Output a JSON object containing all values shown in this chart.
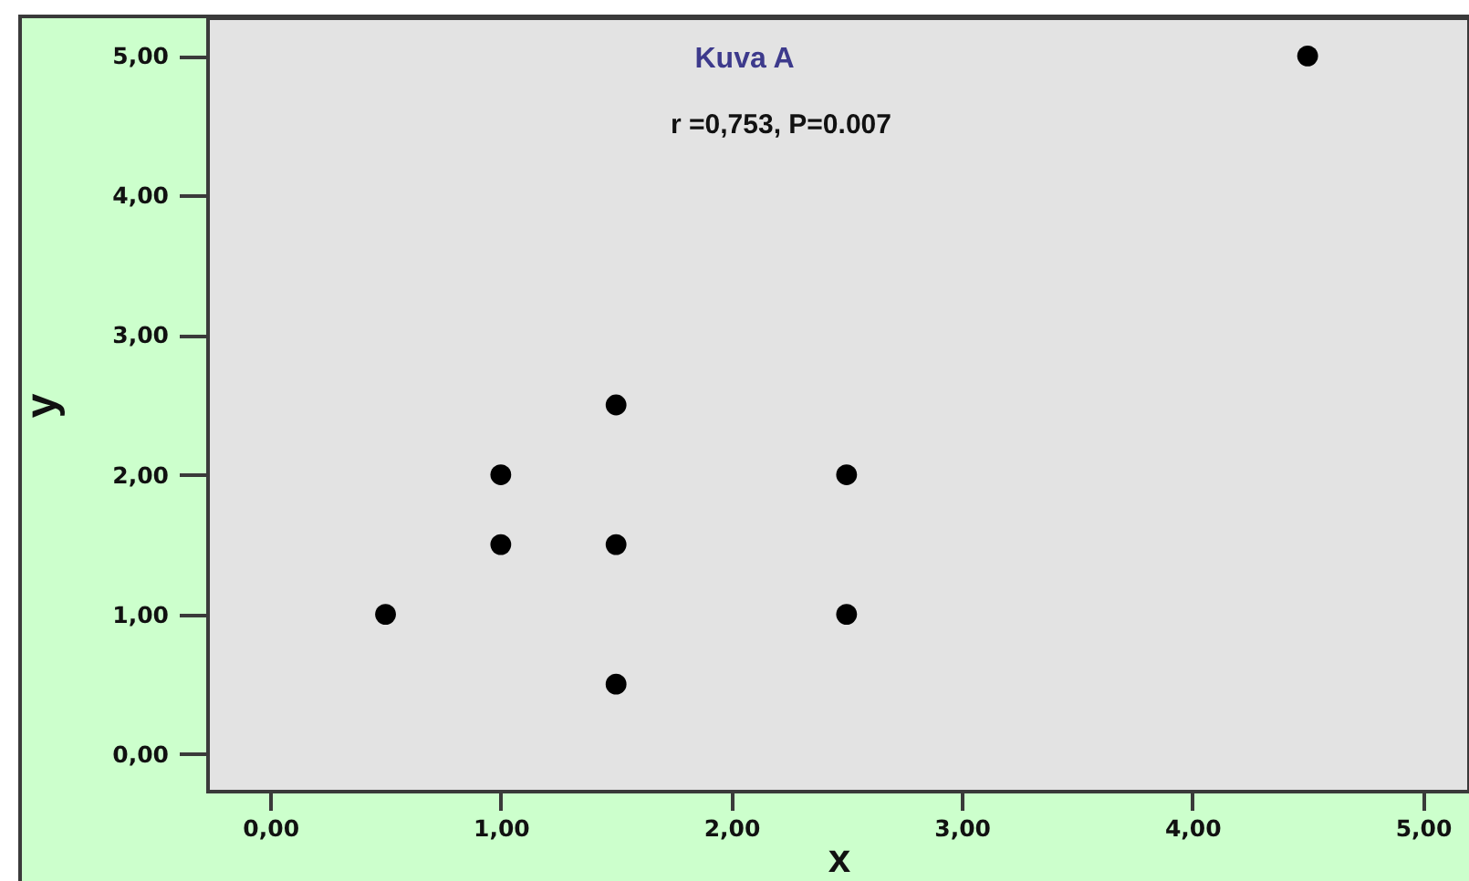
{
  "chart_data": {
    "type": "scatter",
    "title": "Kuva A",
    "subtitle": "r =0,753, P=0.007",
    "xlabel": "x",
    "ylabel": "y",
    "x": [
      0.5,
      1,
      1,
      1.5,
      1.5,
      1.5,
      2.5,
      2.5,
      4.5
    ],
    "values": [
      1,
      2,
      1.5,
      2.5,
      1.5,
      0.5,
      2,
      1,
      5
    ],
    "color": "#000000",
    "marker": "circle",
    "xlim": [
      -0.27,
      5.2
    ],
    "ylim": [
      -0.27,
      5.27
    ],
    "xticks": [
      {
        "value": 0,
        "label": "0,00"
      },
      {
        "value": 1,
        "label": "1,00"
      },
      {
        "value": 2,
        "label": "2,00"
      },
      {
        "value": 3,
        "label": "3,00"
      },
      {
        "value": 4,
        "label": "4,00"
      },
      {
        "value": 5,
        "label": "5,00"
      }
    ],
    "yticks": [
      {
        "value": 0,
        "label": "0,00"
      },
      {
        "value": 1,
        "label": "1,00"
      },
      {
        "value": 2,
        "label": "2,00"
      },
      {
        "value": 3,
        "label": "3,00"
      },
      {
        "value": 4,
        "label": "4,00"
      },
      {
        "value": 5,
        "label": "5,00"
      }
    ]
  }
}
